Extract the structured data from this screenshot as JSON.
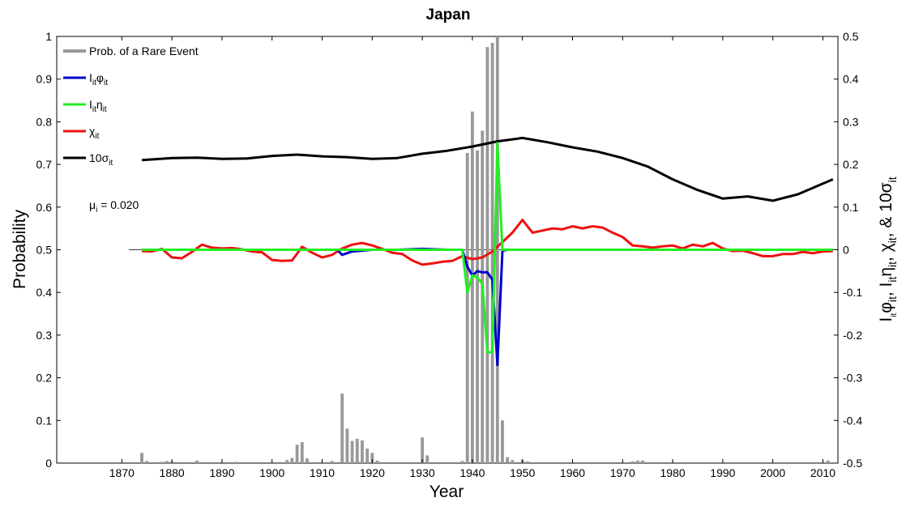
{
  "chart_data": {
    "type": "bar+line",
    "title": "Japan",
    "xlabel": "Year",
    "ylabel_left": "Probability",
    "ylabel_right": "I_it φ_it, I_it η_it, χ_it, & 10σ_it",
    "xlim": [
      1857,
      2013
    ],
    "ylim_left": [
      0,
      1
    ],
    "ylim_right": [
      -0.5,
      0.5
    ],
    "x_ticks": [
      1870,
      1880,
      1890,
      1900,
      1910,
      1920,
      1930,
      1940,
      1950,
      1960,
      1970,
      1980,
      1990,
      2000,
      2010
    ],
    "y_ticks_left": [
      "0",
      "0.1",
      "0.2",
      "0.3",
      "0.4",
      "0.5",
      "0.6",
      "0.7",
      "0.8",
      "0.9",
      "1"
    ],
    "y_ticks_right": [
      "-0.5",
      "-0.4",
      "-0.3",
      "-0.2",
      "-0.1",
      "0",
      "0.1",
      "0.2",
      "0.3",
      "0.4",
      "0.5"
    ],
    "grid": false,
    "legend_position": "top-left",
    "annotation": {
      "symbol": "μ",
      "sub": "i",
      "value": " = 0.020"
    },
    "legend": [
      {
        "key": "bars",
        "label": "Prob. of a Rare Event",
        "color": "#999999"
      },
      {
        "key": "phi",
        "label_main": "I",
        "label_sub1": "it",
        "label_sym": "φ",
        "label_sub2": "it",
        "color": "#0000cc"
      },
      {
        "key": "eta",
        "label_main": "I",
        "label_sub1": "it",
        "label_sym": "η",
        "label_sub2": "it",
        "color": "#22ee22"
      },
      {
        "key": "chi",
        "label_main": "χ",
        "label_sub1": "it",
        "color": "#ee1111"
      },
      {
        "key": "sigma",
        "label_main": "10σ",
        "label_sub1": "it",
        "color": "#000000"
      }
    ],
    "bars": {
      "name": "Prob. of a Rare Event",
      "color": "#999999",
      "x": [
        1874,
        1875,
        1878,
        1879,
        1880,
        1885,
        1893,
        1903,
        1904,
        1905,
        1906,
        1907,
        1912,
        1914,
        1915,
        1916,
        1917,
        1918,
        1919,
        1920,
        1921,
        1930,
        1931,
        1938,
        1939,
        1940,
        1941,
        1942,
        1943,
        1944,
        1945,
        1946,
        1947,
        1948,
        1950,
        1951,
        1972,
        1973,
        1974,
        2011
      ],
      "values": [
        0.024,
        0.005,
        0.003,
        0.005,
        0.004,
        0.006,
        0.003,
        0.007,
        0.012,
        0.043,
        0.049,
        0.011,
        0.005,
        0.163,
        0.081,
        0.052,
        0.057,
        0.053,
        0.034,
        0.024,
        0.006,
        0.06,
        0.018,
        0.005,
        0.727,
        0.824,
        0.733,
        0.779,
        0.975,
        0.985,
        1.0,
        0.1,
        0.014,
        0.007,
        0.007,
        0.004,
        0.004,
        0.006,
        0.006,
        0.006
      ]
    },
    "series": [
      {
        "name": "I_it φ_it",
        "key": "phi",
        "color": "#0000cc",
        "axis": "right",
        "x": [
          1874,
          1910,
          1913,
          1914,
          1916,
          1920,
          1925,
          1930,
          1935,
          1938,
          1939,
          1940,
          1941,
          1942,
          1943,
          1944,
          1945,
          1946,
          1947,
          1950,
          2012
        ],
        "y": [
          0,
          0,
          0,
          -0.012,
          -0.004,
          0,
          0,
          0.002,
          0,
          0,
          -0.04,
          -0.06,
          -0.05,
          -0.053,
          -0.053,
          -0.07,
          -0.27,
          -0.002,
          0,
          0,
          0
        ]
      },
      {
        "name": "I_it η_it",
        "key": "eta",
        "color": "#22ee22",
        "axis": "right",
        "x": [
          1874,
          1930,
          1935,
          1937,
          1938,
          1939,
          1940,
          1941,
          1942,
          1943,
          1944,
          1945,
          1946,
          1947,
          1950,
          2012
        ],
        "y": [
          0,
          0,
          0,
          0,
          0,
          -0.1,
          -0.06,
          -0.065,
          -0.08,
          -0.24,
          -0.24,
          0.25,
          0,
          0,
          0,
          0
        ]
      },
      {
        "name": "χ_it",
        "key": "chi",
        "color": "#ee1111",
        "axis": "right",
        "x": [
          1874,
          1876,
          1878,
          1880,
          1882,
          1884,
          1886,
          1888,
          1890,
          1892,
          1894,
          1896,
          1898,
          1900,
          1902,
          1904,
          1906,
          1908,
          1910,
          1912,
          1914,
          1916,
          1918,
          1920,
          1922,
          1924,
          1926,
          1928,
          1930,
          1932,
          1934,
          1936,
          1938,
          1940,
          1942,
          1944,
          1946,
          1948,
          1950,
          1952,
          1954,
          1956,
          1958,
          1960,
          1962,
          1964,
          1966,
          1968,
          1970,
          1972,
          1974,
          1976,
          1978,
          1980,
          1982,
          1984,
          1986,
          1988,
          1990,
          1992,
          1994,
          1996,
          1998,
          2000,
          2002,
          2004,
          2006,
          2008,
          2010,
          2012
        ],
        "y": [
          -0.003,
          -0.004,
          0.002,
          -0.018,
          -0.02,
          -0.005,
          0.012,
          0.005,
          0.003,
          0.004,
          0.001,
          -0.004,
          -0.006,
          -0.024,
          -0.026,
          -0.025,
          0.007,
          -0.007,
          -0.018,
          -0.012,
          0.003,
          0.012,
          0.016,
          0.01,
          0.002,
          -0.007,
          -0.01,
          -0.025,
          -0.035,
          -0.032,
          -0.028,
          -0.026,
          -0.015,
          -0.022,
          -0.018,
          -0.004,
          0.018,
          0.04,
          0.07,
          0.04,
          0.045,
          0.05,
          0.048,
          0.055,
          0.05,
          0.055,
          0.052,
          0.04,
          0.03,
          0.01,
          0.008,
          0.005,
          0.008,
          0.01,
          0.003,
          0.012,
          0.008,
          0.016,
          0.003,
          -0.003,
          -0.002,
          -0.008,
          -0.015,
          -0.015,
          -0.01,
          -0.01,
          -0.005,
          -0.008,
          -0.004,
          -0.003
        ]
      },
      {
        "name": "10σ_it",
        "key": "sigma",
        "color": "#000000",
        "axis": "right",
        "x": [
          1874,
          1880,
          1885,
          1890,
          1895,
          1900,
          1905,
          1910,
          1915,
          1920,
          1925,
          1930,
          1935,
          1940,
          1945,
          1950,
          1955,
          1960,
          1965,
          1970,
          1975,
          1980,
          1985,
          1990,
          1995,
          2000,
          2005,
          2010,
          2012
        ],
        "y": [
          0.21,
          0.215,
          0.216,
          0.213,
          0.214,
          0.22,
          0.223,
          0.219,
          0.217,
          0.213,
          0.215,
          0.225,
          0.232,
          0.242,
          0.254,
          0.262,
          0.252,
          0.24,
          0.23,
          0.215,
          0.195,
          0.165,
          0.14,
          0.12,
          0.125,
          0.115,
          0.13,
          0.155,
          0.165
        ]
      }
    ]
  }
}
